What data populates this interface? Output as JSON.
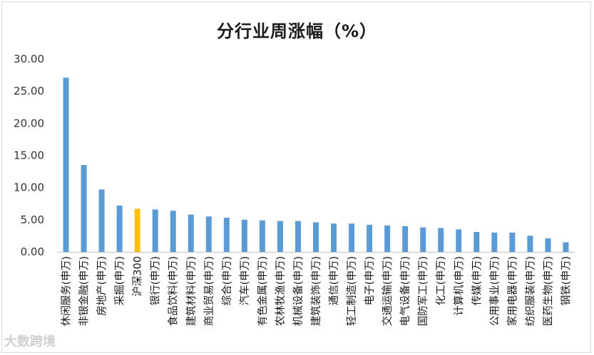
{
  "chart_data": {
    "type": "bar",
    "title": "分行业周涨幅（%）",
    "categories": [
      "休闲服务(申万)",
      "非银金融(申万)",
      "房地产(申万)",
      "采掘(申万)",
      "沪深300",
      "银行(申万)",
      "食品饮料(申万)",
      "建筑材料(申万)",
      "商业贸易(申万)",
      "综合(申万)",
      "汽车(申万)",
      "有色金属(申万)",
      "农林牧渔(申万)",
      "机械设备(申万)",
      "建筑装饰(申万)",
      "通信(申万)",
      "轻工制造(申万)",
      "电子(申万)",
      "交通运输(申万)",
      "电气设备(申万)",
      "国防军工(申万)",
      "化工(申万)",
      "计算机(申万)",
      "传媒(申万)",
      "公用事业(申万)",
      "家用电器(申万)",
      "纺织服装(申万)",
      "医药生物(申万)",
      "钢铁(申万)"
    ],
    "values": [
      27.1,
      13.5,
      9.7,
      7.2,
      6.7,
      6.6,
      6.4,
      5.8,
      5.5,
      5.3,
      5.0,
      4.9,
      4.8,
      4.8,
      4.6,
      4.4,
      4.4,
      4.2,
      4.1,
      4.0,
      3.8,
      3.7,
      3.5,
      3.1,
      3.0,
      3.0,
      2.5,
      2.1,
      1.5
    ],
    "highlight_index": 4,
    "yticks": [
      "0.00",
      "5.00",
      "10.00",
      "15.00",
      "20.00",
      "25.00",
      "30.00"
    ],
    "ylim": [
      0,
      30
    ],
    "grid": false,
    "legend": "none",
    "colors": {
      "bar": "#5b9bd5",
      "highlight": "#ffc000",
      "axis": "#bfbfbf"
    }
  },
  "watermark": "大数跨境"
}
